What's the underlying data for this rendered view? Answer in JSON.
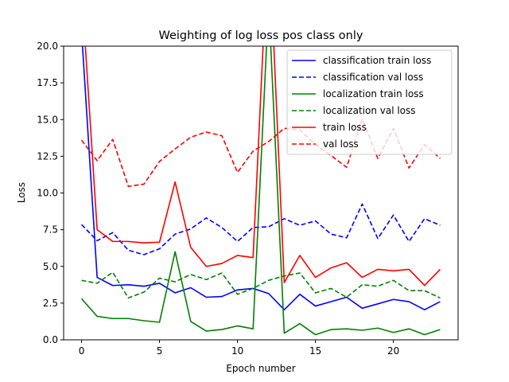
{
  "chart_data": {
    "type": "line",
    "title": "Weighting of log loss pos class only",
    "xlabel": "Epoch number",
    "ylabel": "Loss",
    "xlim": [
      -1.15,
      24.15
    ],
    "ylim": [
      0,
      20
    ],
    "xticks": [
      0,
      5,
      10,
      15,
      20
    ],
    "yticks": [
      0.0,
      2.5,
      5.0,
      7.5,
      10.0,
      12.5,
      15.0,
      17.5,
      20.0
    ],
    "ytick_labels": [
      "0.0",
      "2.5",
      "5.0",
      "7.5",
      "10.0",
      "12.5",
      "15.0",
      "17.5",
      "20.0"
    ],
    "legend_position": "top-right",
    "x": [
      0,
      1,
      2,
      3,
      4,
      5,
      6,
      7,
      8,
      9,
      10,
      11,
      12,
      13,
      14,
      15,
      16,
      17,
      18,
      19,
      20,
      21,
      22,
      23
    ],
    "series": [
      {
        "name": "classification train loss",
        "color": "#0000ff",
        "style": "solid",
        "values": [
          21.0,
          4.25,
          3.7,
          3.75,
          3.65,
          3.85,
          3.2,
          3.55,
          2.9,
          2.95,
          3.4,
          3.5,
          3.15,
          2.05,
          3.1,
          2.3,
          2.6,
          2.9,
          2.15,
          2.45,
          2.75,
          2.6,
          2.05,
          2.6
        ]
      },
      {
        "name": "classification val loss",
        "color": "#0000ff",
        "style": "dashed",
        "values": [
          7.85,
          6.75,
          7.3,
          6.1,
          5.8,
          6.2,
          7.2,
          7.55,
          8.3,
          7.65,
          6.7,
          7.65,
          7.7,
          8.25,
          7.8,
          8.1,
          7.2,
          6.95,
          9.25,
          6.9,
          8.5,
          6.7,
          8.25,
          7.8
        ]
      },
      {
        "name": "localization train loss",
        "color": "#008000",
        "style": "solid",
        "values": [
          2.8,
          1.6,
          1.45,
          1.45,
          1.3,
          1.2,
          6.0,
          1.25,
          0.6,
          0.7,
          0.95,
          0.75,
          23.0,
          0.45,
          1.1,
          0.35,
          0.7,
          0.75,
          0.65,
          0.8,
          0.5,
          0.75,
          0.35,
          0.7
        ]
      },
      {
        "name": "localization val loss",
        "color": "#008000",
        "style": "dashed",
        "values": [
          4.05,
          3.85,
          4.6,
          2.85,
          3.25,
          4.2,
          3.95,
          4.45,
          4.1,
          4.55,
          3.1,
          3.5,
          4.05,
          4.35,
          4.55,
          3.2,
          3.5,
          2.9,
          3.75,
          3.65,
          4.05,
          3.35,
          3.35,
          2.85
        ]
      },
      {
        "name": "train loss",
        "color": "#ff0000",
        "style": "solid",
        "values": [
          24.0,
          7.5,
          6.7,
          6.7,
          6.6,
          6.65,
          10.75,
          6.3,
          5.0,
          5.2,
          5.75,
          5.6,
          28.0,
          3.9,
          5.75,
          4.25,
          4.9,
          5.25,
          4.25,
          4.8,
          4.7,
          4.8,
          3.7,
          4.8
        ]
      },
      {
        "name": "val loss",
        "color": "#ff0000",
        "style": "dashed",
        "values": [
          13.6,
          12.2,
          13.65,
          10.45,
          10.6,
          12.15,
          13.0,
          13.8,
          14.15,
          13.9,
          11.4,
          12.85,
          13.5,
          14.4,
          14.3,
          13.3,
          12.55,
          11.75,
          15.05,
          12.35,
          14.4,
          11.7,
          13.3,
          12.35
        ]
      }
    ]
  }
}
